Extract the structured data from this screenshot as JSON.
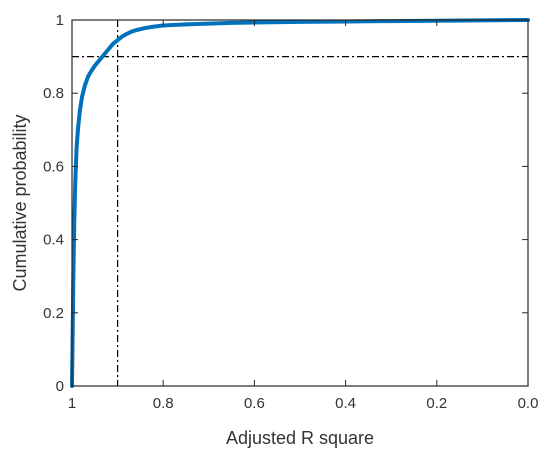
{
  "chart_data": {
    "type": "line",
    "title": "",
    "xlabel": "Adjusted R square",
    "ylabel": "Cumulative probability",
    "xlim": [
      1.0,
      0.0
    ],
    "ylim": [
      0,
      1
    ],
    "x_reversed": true,
    "xticks": [
      1,
      0.8,
      0.6,
      0.4,
      0.2,
      0.0
    ],
    "xtick_labels": [
      "1",
      "0.8",
      "0.6",
      "0.4",
      "0.2",
      "0.0"
    ],
    "yticks": [
      0,
      0.2,
      0.4,
      0.6,
      0.8,
      1
    ],
    "ytick_labels": [
      "0",
      "0.2",
      "0.4",
      "0.6",
      "0.8",
      "1"
    ],
    "grid": false,
    "reference_lines": [
      {
        "orientation": "vertical",
        "x": 0.9,
        "style": "dash-dot"
      },
      {
        "orientation": "horizontal",
        "y": 0.9,
        "style": "dash-dot"
      }
    ],
    "series": [
      {
        "color": "#0072BD",
        "x": [
          1.0,
          0.999,
          0.997,
          0.995,
          0.993,
          0.99,
          0.987,
          0.983,
          0.978,
          0.972,
          0.965,
          0.958,
          0.95,
          0.94,
          0.93,
          0.92,
          0.91,
          0.9,
          0.89,
          0.88,
          0.87,
          0.86,
          0.84,
          0.82,
          0.8,
          0.75,
          0.7,
          0.65,
          0.6,
          0.5,
          0.4,
          0.3,
          0.2,
          0.1,
          0.0
        ],
        "y": [
          0.0,
          0.1,
          0.3,
          0.45,
          0.55,
          0.65,
          0.7,
          0.75,
          0.79,
          0.82,
          0.845,
          0.86,
          0.875,
          0.89,
          0.905,
          0.92,
          0.935,
          0.945,
          0.955,
          0.962,
          0.968,
          0.972,
          0.978,
          0.982,
          0.985,
          0.988,
          0.99,
          0.992,
          0.993,
          0.995,
          0.996,
          0.997,
          0.998,
          0.999,
          1.0
        ]
      }
    ]
  }
}
